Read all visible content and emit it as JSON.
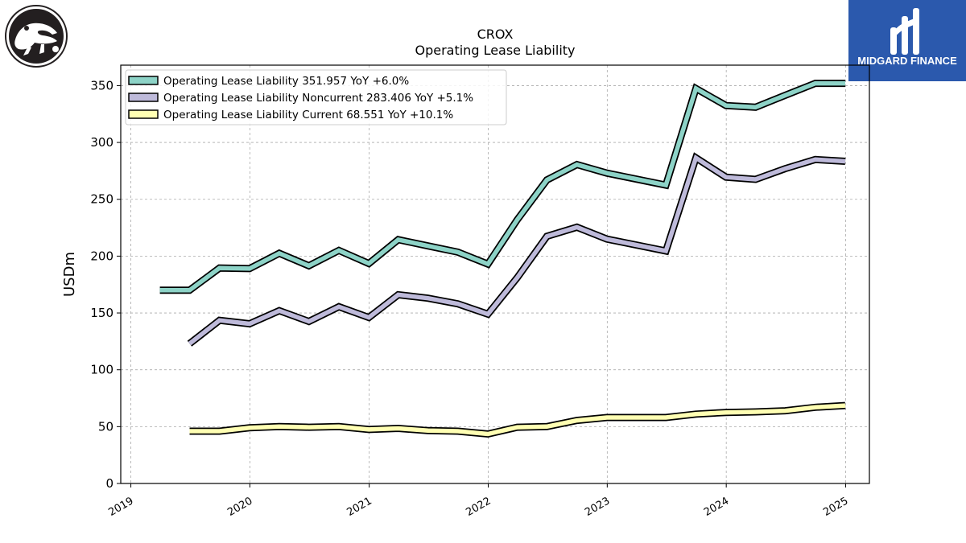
{
  "chart_data": {
    "type": "line",
    "title": "CROX",
    "subtitle": "Operating Lease Liability",
    "ylabel": "USDm",
    "xlabel": "",
    "ylim": [
      0,
      368
    ],
    "yticks": [
      0,
      50,
      100,
      150,
      200,
      250,
      300,
      350
    ],
    "xticks": [
      "2019",
      "2020",
      "2021",
      "2022",
      "2023",
      "2024",
      "2025"
    ],
    "grid": true,
    "legend_position": "top-left",
    "series": [
      {
        "name": "Operating Lease Liability",
        "legend_label": "Operating Lease Liability  351.957 YoY +6.0%",
        "color": "#8dd3c7",
        "points": [
          {
            "x": "2019-03-31",
            "y": 170.0
          },
          {
            "x": "2019-06-30",
            "y": 170.0
          },
          {
            "x": "2019-09-30",
            "y": 189.5
          },
          {
            "x": "2019-12-31",
            "y": 189.0
          },
          {
            "x": "2020-03-31",
            "y": 202.5
          },
          {
            "x": "2020-06-30",
            "y": 191.5
          },
          {
            "x": "2020-09-30",
            "y": 205.0
          },
          {
            "x": "2020-12-31",
            "y": 193.5
          },
          {
            "x": "2021-03-31",
            "y": 214.5
          },
          {
            "x": "2021-06-30",
            "y": 209.0
          },
          {
            "x": "2021-09-30",
            "y": 203.5
          },
          {
            "x": "2021-12-31",
            "y": 193.0
          },
          {
            "x": "2022-03-31",
            "y": 232.0
          },
          {
            "x": "2022-06-30",
            "y": 267.0
          },
          {
            "x": "2022-09-30",
            "y": 280.5
          },
          {
            "x": "2022-12-31",
            "y": 273.0
          },
          {
            "x": "2023-06-30",
            "y": 262.5
          },
          {
            "x": "2023-09-30",
            "y": 347.5
          },
          {
            "x": "2023-12-31",
            "y": 332.5
          },
          {
            "x": "2024-03-31",
            "y": 331.0
          },
          {
            "x": "2024-06-30",
            "y": 341.5
          },
          {
            "x": "2024-09-30",
            "y": 352.0
          },
          {
            "x": "2024-12-31",
            "y": 352.0
          }
        ]
      },
      {
        "name": "Operating Lease Liability Noncurrent",
        "legend_label": "Operating Lease Liability Noncurrent  283.406 YoY +5.1%",
        "color": "#bebada",
        "points": [
          {
            "x": "2019-06-30",
            "y": 123.0
          },
          {
            "x": "2019-09-30",
            "y": 143.5
          },
          {
            "x": "2019-12-31",
            "y": 140.5
          },
          {
            "x": "2020-03-31",
            "y": 152.0
          },
          {
            "x": "2020-06-30",
            "y": 142.5
          },
          {
            "x": "2020-09-30",
            "y": 155.5
          },
          {
            "x": "2020-12-31",
            "y": 146.0
          },
          {
            "x": "2021-03-31",
            "y": 166.0
          },
          {
            "x": "2021-06-30",
            "y": 163.0
          },
          {
            "x": "2021-09-30",
            "y": 158.0
          },
          {
            "x": "2021-12-31",
            "y": 149.0
          },
          {
            "x": "2022-03-31",
            "y": 181.0
          },
          {
            "x": "2022-06-30",
            "y": 217.5
          },
          {
            "x": "2022-09-30",
            "y": 225.5
          },
          {
            "x": "2022-12-31",
            "y": 215.0
          },
          {
            "x": "2023-06-30",
            "y": 204.5
          },
          {
            "x": "2023-09-30",
            "y": 286.5
          },
          {
            "x": "2023-12-31",
            "y": 269.5
          },
          {
            "x": "2024-03-31",
            "y": 267.5
          },
          {
            "x": "2024-06-30",
            "y": 277.0
          },
          {
            "x": "2024-09-30",
            "y": 285.0
          },
          {
            "x": "2024-12-31",
            "y": 283.4
          }
        ]
      },
      {
        "name": "Operating Lease Liability Current",
        "legend_label": "Operating Lease Liability Current  68.551 YoY +10.1%",
        "color": "#ffffb3",
        "points": [
          {
            "x": "2019-06-30",
            "y": 46.0
          },
          {
            "x": "2019-09-30",
            "y": 46.0
          },
          {
            "x": "2019-12-31",
            "y": 49.0
          },
          {
            "x": "2020-03-31",
            "y": 50.0
          },
          {
            "x": "2020-06-30",
            "y": 49.5
          },
          {
            "x": "2020-09-30",
            "y": 50.0
          },
          {
            "x": "2020-12-31",
            "y": 47.5
          },
          {
            "x": "2021-03-31",
            "y": 48.5
          },
          {
            "x": "2021-06-30",
            "y": 46.5
          },
          {
            "x": "2021-09-30",
            "y": 46.0
          },
          {
            "x": "2021-12-31",
            "y": 43.5
          },
          {
            "x": "2022-03-31",
            "y": 49.5
          },
          {
            "x": "2022-06-30",
            "y": 50.0
          },
          {
            "x": "2022-09-30",
            "y": 55.5
          },
          {
            "x": "2022-12-31",
            "y": 58.0
          },
          {
            "x": "2023-06-30",
            "y": 58.0
          },
          {
            "x": "2023-09-30",
            "y": 61.0
          },
          {
            "x": "2023-12-31",
            "y": 62.5
          },
          {
            "x": "2024-03-31",
            "y": 63.0
          },
          {
            "x": "2024-06-30",
            "y": 64.0
          },
          {
            "x": "2024-09-30",
            "y": 67.0
          },
          {
            "x": "2024-12-31",
            "y": 68.55
          }
        ]
      }
    ]
  },
  "logos": {
    "left": {
      "name": "crocs-logo",
      "icon": "crocodile-icon"
    },
    "right": {
      "text": "MIDGARD FINANCE",
      "color": "#2b59ad"
    }
  }
}
